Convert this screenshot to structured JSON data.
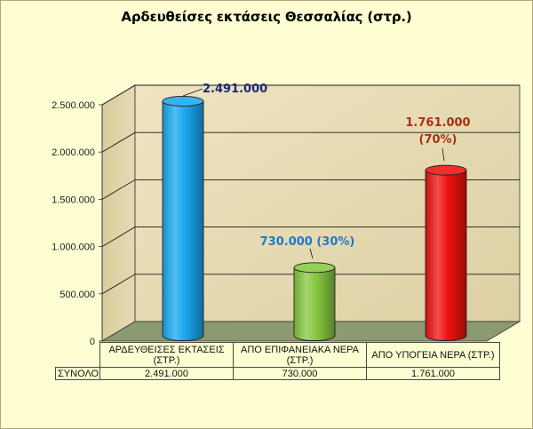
{
  "chart_data": {
    "type": "bar",
    "title": "Αρδευθείσες εκτάσεις Θεσσαλίας (στρ.)",
    "categories": [
      "ΑΡΔΕΥΘΕΙΣΕΣ ΕΚΤΑΣΕΙΣ (ΣΤΡ.)",
      "ΑΠΟ ΕΠΙΦΑΝΕΙΑΚΑ ΝΕΡΑ (ΣΤΡ.)",
      "ΑΠΟ ΥΠΟΓΕΙΑ ΝΕΡΑ (ΣΤΡ.)"
    ],
    "series": [
      {
        "name": "ΣΥΝΟΛΟ",
        "values": [
          2491000,
          730000,
          1761000
        ]
      }
    ],
    "data_labels": [
      "2.491.000",
      "730.000 (30%)",
      "1.761.000 (70%)"
    ],
    "ylim": [
      0,
      2500000
    ],
    "yticks": [
      0,
      500000,
      1000000,
      1500000,
      2000000,
      2500000
    ],
    "ytick_labels": [
      "0",
      "500.000",
      "1.000.000",
      "1.500.000",
      "2.000.000",
      "2.500.000"
    ],
    "grid": true,
    "legend": "data table below chart"
  },
  "table": {
    "row_label": "ΣΥΝΟΛΟ",
    "categories": [
      "ΑΡΔΕΥΘΕΙΣΕΣ ΕΚΤΑΣΕΙΣ  (ΣΤΡ.)",
      "ΑΠΟ ΕΠΙΦΑΝΕΙΑΚΑ ΝΕΡΑ (ΣΤΡ.)",
      "ΑΠΟ ΥΠΟΓΕΙΑ ΝΕΡΑ (ΣΤΡ.)"
    ],
    "values": [
      "2.491.000",
      "730.000",
      "1.761.000"
    ]
  },
  "colors": {
    "page_bg": "#fefed2",
    "wall": "#e8dcb4",
    "floor": "#8c9a72",
    "bar_colors": [
      "#18a8f0",
      "#86c840",
      "#f01010"
    ],
    "label_colors": [
      "#1c2c7c",
      "#1e78c8",
      "#a83014"
    ]
  }
}
